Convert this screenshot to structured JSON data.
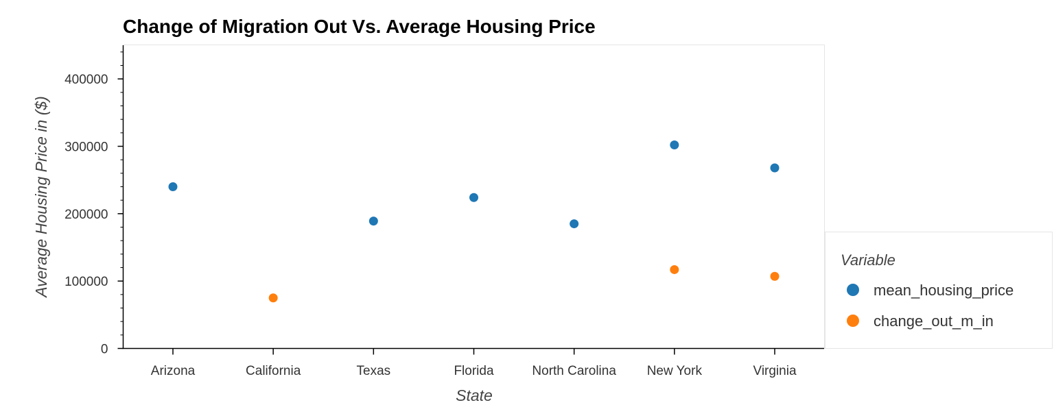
{
  "chart_data": {
    "type": "scatter",
    "title": "Change of Migration Out Vs. Average Housing Price",
    "xlabel": "State",
    "ylabel": "Average Housing Price in ($)",
    "categories": [
      "Arizona",
      "California",
      "Texas",
      "Florida",
      "North Carolina",
      "New York",
      "Virginia"
    ],
    "ylim": [
      0,
      450000
    ],
    "yticks": [
      0,
      100000,
      200000,
      300000,
      400000
    ],
    "grid": false,
    "legend": {
      "title": "Variable",
      "placement": "right"
    },
    "series": [
      {
        "name": "mean_housing_price",
        "color": "#1f77b4",
        "points": [
          {
            "x": "Arizona",
            "y": 240000
          },
          {
            "x": "Texas",
            "y": 189000
          },
          {
            "x": "Florida",
            "y": 224000
          },
          {
            "x": "North Carolina",
            "y": 185000
          },
          {
            "x": "New York",
            "y": 302000
          },
          {
            "x": "Virginia",
            "y": 268000
          }
        ]
      },
      {
        "name": "change_out_m_in",
        "color": "#ff7f0e",
        "points": [
          {
            "x": "California",
            "y": 75000
          },
          {
            "x": "New York",
            "y": 117000
          },
          {
            "x": "Virginia",
            "y": 107000
          }
        ]
      }
    ]
  }
}
